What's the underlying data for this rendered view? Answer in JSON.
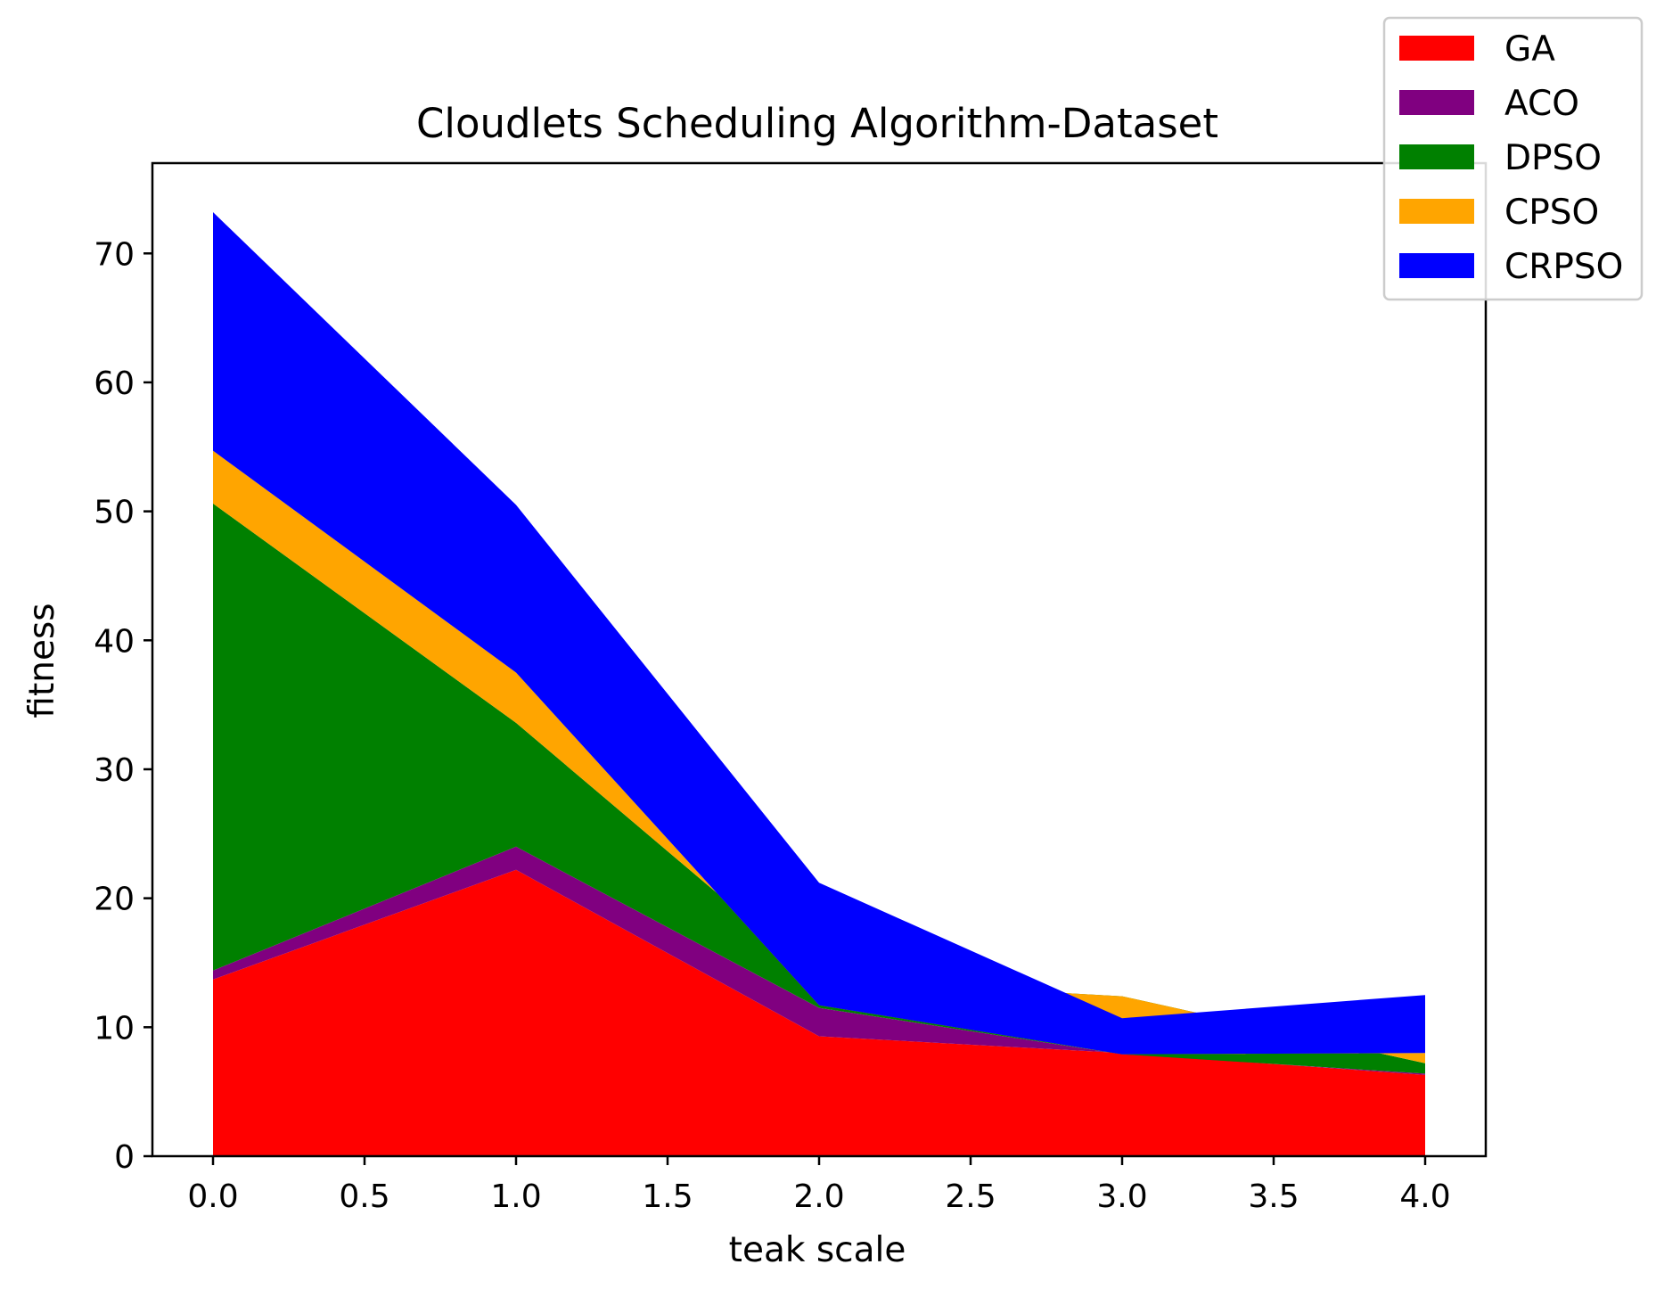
{
  "chart_data": {
    "type": "area",
    "stacked": true,
    "title": "Cloudlets Scheduling Algorithm-Dataset",
    "xlabel": "teak scale",
    "ylabel": "fitness",
    "x": [
      0,
      1,
      2,
      3,
      4
    ],
    "xlim": [
      -0.2,
      4.2
    ],
    "ylim": [
      0,
      77
    ],
    "xticks": [
      0.0,
      0.5,
      1.0,
      1.5,
      2.0,
      2.5,
      3.0,
      3.5,
      4.0
    ],
    "xtick_labels": [
      "0.0",
      "0.5",
      "1.0",
      "1.5",
      "2.0",
      "2.5",
      "3.0",
      "3.5",
      "4.0"
    ],
    "yticks": [
      0,
      10,
      20,
      30,
      40,
      50,
      60,
      70
    ],
    "ytick_labels": [
      "0",
      "10",
      "20",
      "30",
      "40",
      "50",
      "60",
      "70"
    ],
    "grid": false,
    "legend_position": "top-right",
    "series": [
      {
        "name": "GA",
        "color": "#ff0000",
        "values": [
          13.7,
          22.2,
          9.3,
          8.0,
          6.3
        ]
      },
      {
        "name": "ACO",
        "color": "#800080",
        "values": [
          0.7,
          1.8,
          2.2,
          -0.1,
          0.1
        ]
      },
      {
        "name": "DPSO",
        "color": "#008000",
        "values": [
          36.2,
          9.6,
          2.2,
          4.5,
          0.8
        ]
      },
      {
        "name": "CPSO",
        "color": "#ffa500",
        "values": [
          4.1,
          3.9,
          -2.0,
          -4.5,
          0.8
        ]
      },
      {
        "name": "CRPSO",
        "color": "#0000ff",
        "values": [
          18.5,
          13.0,
          9.5,
          2.8,
          4.5
        ]
      }
    ]
  }
}
